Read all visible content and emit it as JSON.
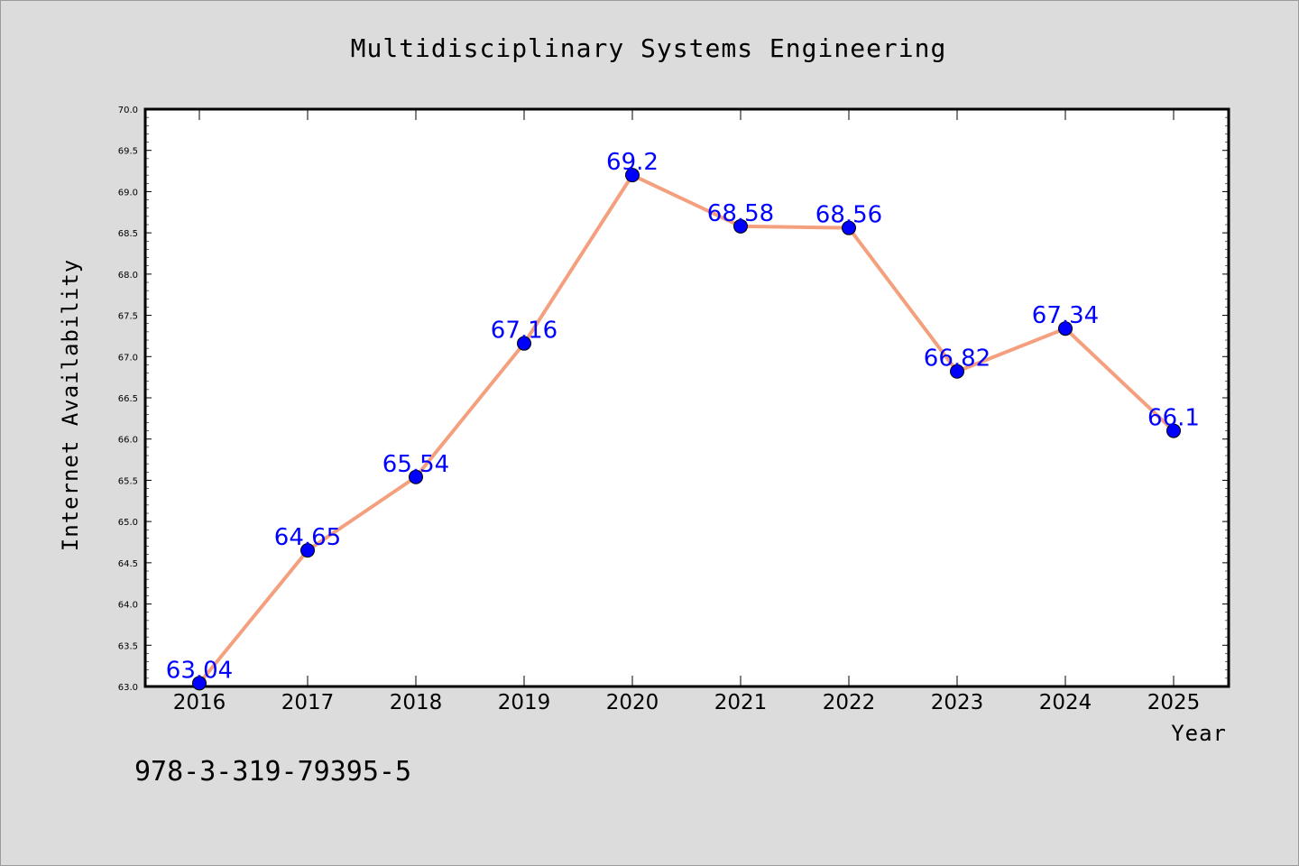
{
  "chart_data": {
    "type": "line",
    "title": "Multidisciplinary Systems Engineering",
    "xlabel": "Year",
    "ylabel": "Internet Availability",
    "categories": [
      "2016",
      "2017",
      "2018",
      "2019",
      "2020",
      "2021",
      "2022",
      "2023",
      "2024",
      "2025"
    ],
    "series": [
      {
        "values": [
          63.04,
          64.65,
          65.54,
          67.16,
          69.2,
          68.58,
          68.56,
          66.82,
          67.34,
          66.1
        ],
        "data_labels": [
          "63.04",
          "64.65",
          "65.54",
          "67.16",
          "69.2",
          "68.58",
          "68.56",
          "66.82",
          "67.34",
          "66.1"
        ],
        "line_color": "#f4a07f",
        "marker_color": "#0000ff"
      }
    ],
    "ylim": [
      63.0,
      70.0
    ],
    "yticks": [
      "63.0",
      "63.5",
      "64.0",
      "64.5",
      "65.0",
      "65.5",
      "66.0",
      "66.5",
      "67.0",
      "67.5",
      "68.0",
      "68.5",
      "69.0",
      "69.5",
      "70.0"
    ],
    "grid": false,
    "legend": "none",
    "background_color": "#dcdcdc",
    "plot_background": "#ffffff"
  },
  "footer": {
    "text": "978-3-319-79395-5"
  }
}
